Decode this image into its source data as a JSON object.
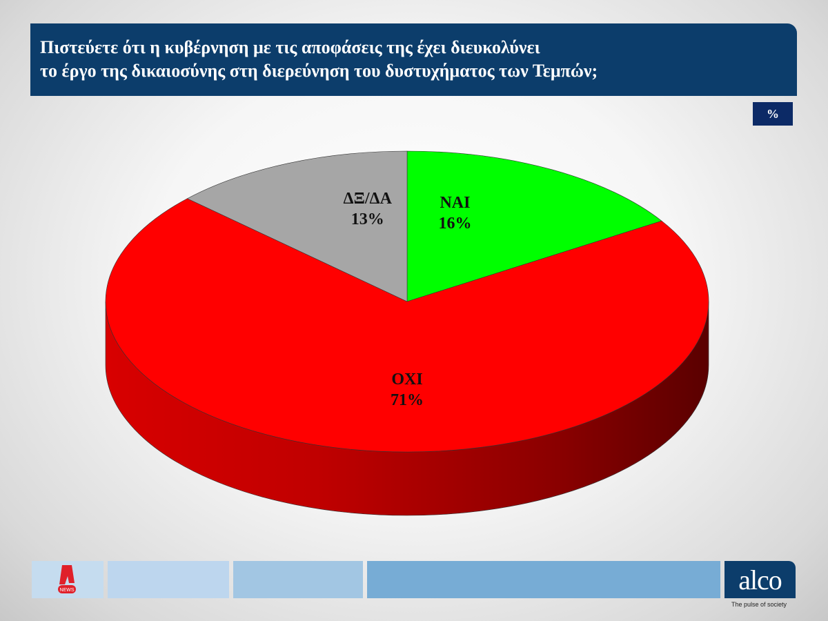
{
  "header": {
    "title_line1": "Πιστεύετε ότι η κυβέρνηση με τις αποφάσεις της έχει διευκολύνει",
    "title_line2": "το έργο της δικαιοσύνης στη διερεύνηση του δυστυχήματος των Τεμπών;",
    "unit": "%"
  },
  "chart_data": {
    "type": "pie",
    "style": "3d",
    "title": "Πιστεύετε ότι η κυβέρνηση με τις αποφάσεις της έχει διευκολύνει το έργο της δικαιοσύνης στη διερεύνηση του δυστυχήματος των Τεμπών;",
    "slices": [
      {
        "label": "ΝΑΙ",
        "value": 16,
        "value_label": "16%",
        "color": "#00ff00"
      },
      {
        "label": "ΟΧΙ",
        "value": 71,
        "value_label": "71%",
        "color": "#ff0000"
      },
      {
        "label": "ΔΞ/ΔΑ",
        "value": 13,
        "value_label": "13%",
        "color": "#a6a6a6"
      }
    ]
  },
  "footer": {
    "left_logo": "NEWS",
    "right_logo": "alco",
    "tagline": "The pulse of society"
  }
}
